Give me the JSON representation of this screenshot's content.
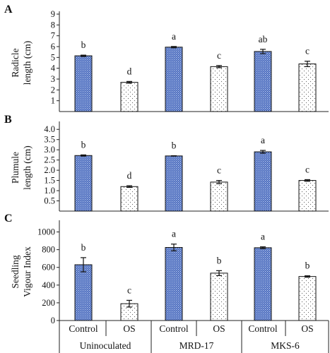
{
  "groups": [
    "Uninoculated",
    "MRD-17",
    "MKS-6"
  ],
  "treatments": [
    "Control",
    "OS"
  ],
  "colors": {
    "control_fill": "#4f6fc0",
    "control_dot": "#c9d7f2",
    "os_fill": "#ffffff",
    "os_dot": "#666666",
    "axis": "#222222"
  },
  "chart_data": [
    {
      "type": "bar",
      "panel_label": "A",
      "ylabel_lines": [
        "Radicle",
        "length (cm)"
      ],
      "ylim": [
        0,
        9
      ],
      "yticks": [
        1,
        2,
        3,
        4,
        5,
        6,
        7,
        8,
        9
      ],
      "tick_labels": [
        "1",
        "2",
        "3",
        "4",
        "5",
        "6",
        "7",
        "8",
        "9"
      ],
      "categories": [
        "Control",
        "OS",
        "Control",
        "OS",
        "Control",
        "OS"
      ],
      "values": [
        5.15,
        2.7,
        5.95,
        4.15,
        5.55,
        4.4
      ],
      "errors": [
        0.06,
        0.08,
        0.06,
        0.1,
        0.2,
        0.25
      ],
      "letters": [
        "b",
        "d",
        "a",
        "c",
        "ab",
        "c"
      ]
    },
    {
      "type": "bar",
      "panel_label": "B",
      "ylabel_lines": [
        "Plumule",
        "length (cm)"
      ],
      "ylim": [
        0,
        4.25
      ],
      "yticks": [
        0.5,
        1.0,
        1.5,
        2.0,
        2.5,
        3.0,
        3.5,
        4.0
      ],
      "tick_labels": [
        "0.5",
        "1.0",
        "1.5",
        "2.0",
        "2.5",
        "3.0",
        "3.5",
        "4.0"
      ],
      "categories": [
        "Control",
        "OS",
        "Control",
        "OS",
        "Control",
        "OS"
      ],
      "values": [
        2.72,
        1.2,
        2.7,
        1.42,
        2.9,
        1.5
      ],
      "errors": [
        0.03,
        0.04,
        0.01,
        0.08,
        0.07,
        0.04
      ],
      "letters": [
        "b",
        "d",
        "b",
        "c",
        "a",
        "c"
      ]
    },
    {
      "type": "bar",
      "panel_label": "C",
      "ylabel_lines": [
        "Seedling",
        "Vigour Index"
      ],
      "ylim": [
        0,
        1100
      ],
      "yticks": [
        0,
        200,
        400,
        600,
        800,
        1000
      ],
      "tick_labels": [
        "0",
        "200",
        "400",
        "600",
        "800",
        "1000"
      ],
      "categories": [
        "Control",
        "OS",
        "Control",
        "OS",
        "Control",
        "OS"
      ],
      "values": [
        630,
        190,
        825,
        535,
        822,
        497
      ],
      "errors": [
        80,
        38,
        38,
        28,
        10,
        8
      ],
      "letters": [
        "b",
        "c",
        "a",
        "b",
        "a",
        "b"
      ]
    }
  ]
}
